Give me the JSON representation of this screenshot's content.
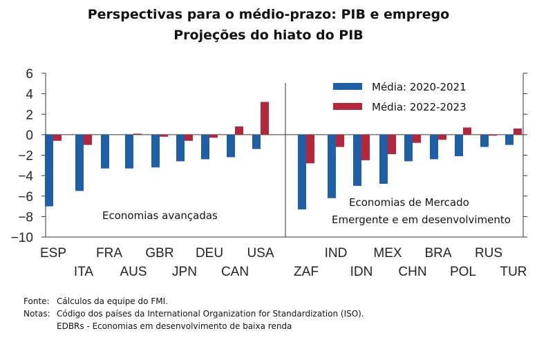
{
  "title": "Perspectivas para o médio-prazo: PIB e emprego",
  "subtitle": "Projeções do hiato do PIB",
  "colors": {
    "series1": "#1f5fa8",
    "series2": "#b5263a"
  },
  "chart_data": {
    "type": "bar",
    "categories": [
      "ESP",
      "ITA",
      "FRA",
      "AUS",
      "GBR",
      "JPN",
      "DEU",
      "CAN",
      "USA",
      "ZAF",
      "IND",
      "IDN",
      "MEX",
      "CHN",
      "BRA",
      "POL",
      "RUS",
      "TUR"
    ],
    "series": [
      {
        "name": "Média: 2020-2021",
        "values": [
          -7.0,
          -5.5,
          -3.3,
          -3.3,
          -3.2,
          -2.6,
          -2.4,
          -2.2,
          -1.4,
          -7.3,
          -6.2,
          -5.0,
          -4.8,
          -2.6,
          -2.4,
          -2.1,
          -1.2,
          -1.0
        ]
      },
      {
        "name": "Média: 2022-2023",
        "values": [
          -0.6,
          -1.0,
          0.0,
          0.1,
          -0.2,
          -0.6,
          -0.3,
          0.8,
          3.2,
          -2.8,
          -1.2,
          -2.5,
          -1.9,
          -0.8,
          -0.5,
          0.7,
          -0.1,
          0.6
        ]
      }
    ],
    "ylim": [
      -10,
      6
    ],
    "yticks": [
      -10,
      -8,
      -6,
      -4,
      -2,
      0,
      2,
      4,
      6
    ],
    "legend": "top-right",
    "group_labels": [
      "Economias avançadas",
      "Economias de Mercado",
      "Emergente e em desenvolvimento"
    ]
  },
  "notes": {
    "source_label": "Fonte:",
    "source_text": "Cálculos da equipe do FMI.",
    "notes_label": "Notas:",
    "notes_text": "Código dos países da International Organization for Standardization (ISO).",
    "notes_text2": "EDBRs - Economias em desenvolvimento  de baixa renda"
  }
}
